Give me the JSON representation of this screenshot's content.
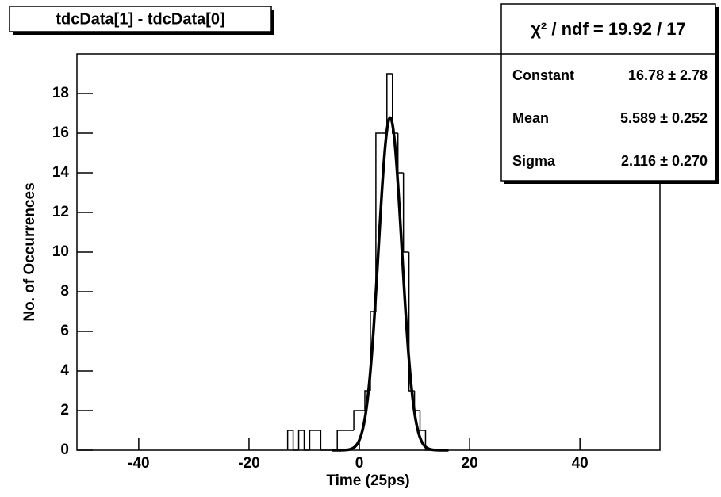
{
  "chart_data": {
    "type": "histogram",
    "title": "tdcData[1] - tdcData[0]",
    "x_label": "Time (25ps)",
    "y_label": "No. of Occurrences",
    "bins": [
      -13,
      -12,
      -11,
      -10,
      -9,
      -8,
      -7,
      -6,
      -5,
      -4,
      -3,
      -2,
      -1,
      0,
      1,
      2,
      3,
      4,
      5,
      6,
      7,
      8,
      9,
      10,
      11,
      12,
      13
    ],
    "values": [
      1,
      0,
      1,
      0,
      1,
      1,
      0,
      0,
      0,
      1,
      1,
      1,
      2,
      2,
      3,
      7,
      16,
      16,
      19,
      16,
      14,
      10,
      3,
      2,
      1,
      0
    ],
    "color": "#000000",
    "xlim": [
      -51.2,
      54.5
    ],
    "xticks": [
      -40,
      -20,
      0,
      20,
      40
    ],
    "ylim": [
      0,
      20
    ],
    "yticks": [
      0,
      2,
      4,
      6,
      8,
      10,
      12,
      14,
      16,
      18
    ],
    "fit": {
      "chi2_label": "χ² / ndf = 19.92 / 17",
      "params": [
        {
          "name": "Constant",
          "value": 16.78,
          "error": 2.78,
          "label": "16.78 ± 2.78"
        },
        {
          "name": "Mean",
          "value": 5.589,
          "error": 0.252,
          "label": "5.589 ± 0.252"
        },
        {
          "name": "Sigma",
          "value": 2.116,
          "error": 0.27,
          "label": "2.116 ± 0.270"
        }
      ]
    }
  }
}
